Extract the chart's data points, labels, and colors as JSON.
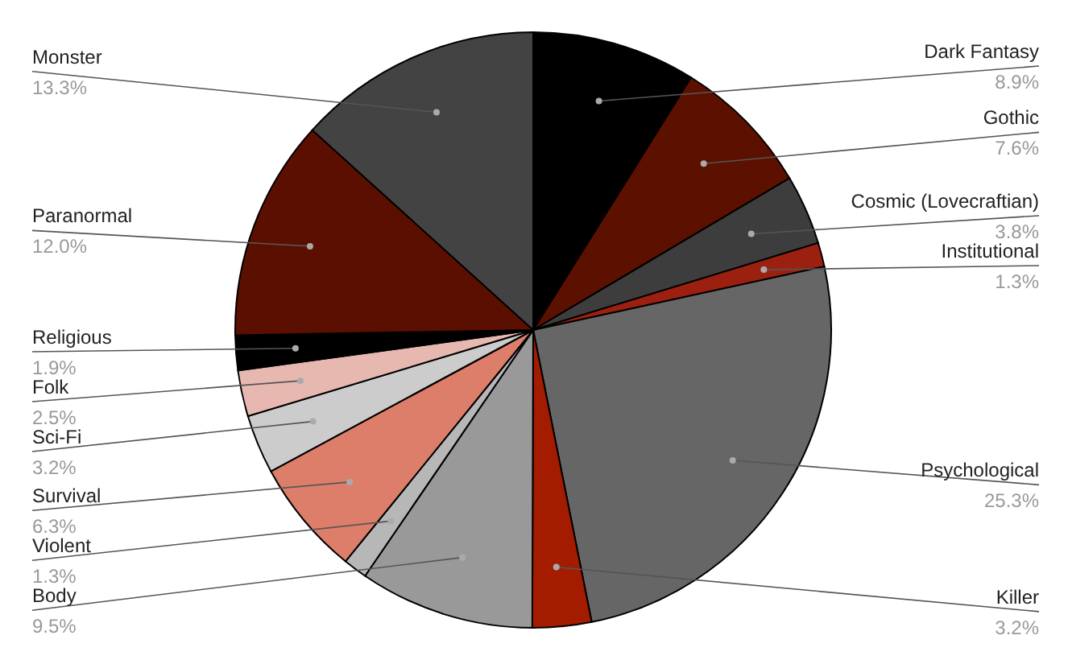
{
  "chart_data": {
    "type": "pie",
    "categories": [
      "Dark Fantasy",
      "Gothic",
      "Cosmic (Lovecraftian)",
      "Institutional",
      "Psychological",
      "Killer",
      "Body",
      "Violent",
      "Survival",
      "Sci-Fi",
      "Folk",
      "Religious",
      "Paranormal",
      "Monster"
    ],
    "values": [
      8.9,
      7.6,
      3.8,
      1.3,
      25.3,
      3.2,
      9.5,
      1.3,
      6.3,
      3.2,
      2.5,
      1.9,
      12.0,
      13.3
    ],
    "colors": [
      "#000000",
      "#5c1000",
      "#3d3d3d",
      "#9c2010",
      "#666666",
      "#a31c00",
      "#999999",
      "#b7b7b7",
      "#dd7e6b",
      "#cccccc",
      "#e6b8af",
      "#000000",
      "#5b0f00",
      "#434343"
    ],
    "value_labels": [
      "8.9%",
      "7.6%",
      "3.8%",
      "1.3%",
      "25.3%",
      "3.2%",
      "9.5%",
      "1.3%",
      "6.3%",
      "3.2%",
      "2.5%",
      "1.9%",
      "12.0%",
      "13.3%"
    ]
  }
}
